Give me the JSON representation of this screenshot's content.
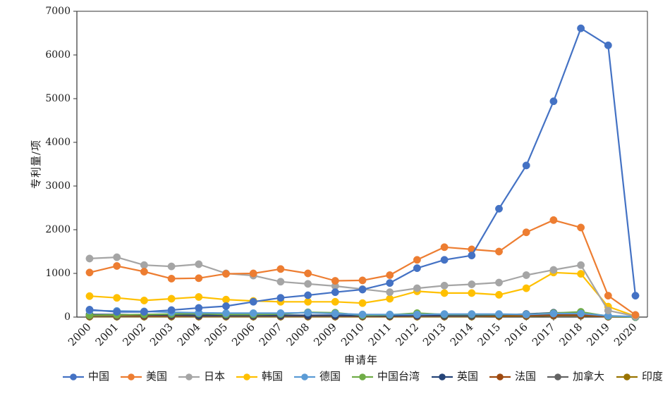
{
  "chart_data": {
    "type": "line",
    "title": "",
    "xlabel": "申请年",
    "ylabel": "专利量/项",
    "ylim": [
      0,
      7000
    ],
    "yticks": [
      0,
      1000,
      2000,
      3000,
      4000,
      5000,
      6000,
      7000
    ],
    "x": [
      "2000",
      "2001",
      "2002",
      "2003",
      "2004",
      "2005",
      "2006",
      "2007",
      "2008",
      "2009",
      "2010",
      "2011",
      "2012",
      "2013",
      "2014",
      "2015",
      "2016",
      "2017",
      "2018",
      "2019",
      "2020"
    ],
    "grid": false,
    "legend_position": "bottom",
    "series": [
      {
        "name": "中国",
        "color": "#4472c4",
        "values": [
          170,
          120,
          120,
          160,
          210,
          250,
          350,
          440,
          500,
          570,
          630,
          780,
          1120,
          1310,
          1410,
          2480,
          3470,
          4940,
          6610,
          6220,
          490
        ]
      },
      {
        "name": "美国",
        "color": "#ed7d31",
        "values": [
          1020,
          1170,
          1040,
          880,
          890,
          990,
          1000,
          1100,
          1000,
          830,
          840,
          960,
          1310,
          1600,
          1550,
          1500,
          1940,
          2220,
          2050,
          490,
          50
        ]
      },
      {
        "name": "日本",
        "color": "#a5a5a5",
        "values": [
          1340,
          1370,
          1190,
          1160,
          1210,
          1000,
          950,
          810,
          760,
          710,
          640,
          570,
          660,
          720,
          750,
          790,
          960,
          1080,
          1190,
          150,
          20
        ]
      },
      {
        "name": "韩国",
        "color": "#ffc000",
        "values": [
          480,
          440,
          380,
          420,
          460,
          400,
          370,
          350,
          350,
          350,
          320,
          420,
          590,
          550,
          550,
          510,
          660,
          1020,
          990,
          240,
          20
        ]
      },
      {
        "name": "德国",
        "color": "#5b9bd5",
        "values": [
          150,
          140,
          130,
          110,
          100,
          90,
          90,
          90,
          100,
          80,
          60,
          60,
          60,
          70,
          70,
          70,
          60,
          80,
          80,
          30,
          10
        ]
      },
      {
        "name": "中国台湾",
        "color": "#70ad47",
        "values": [
          40,
          50,
          60,
          70,
          80,
          60,
          60,
          70,
          110,
          100,
          40,
          50,
          90,
          60,
          60,
          60,
          60,
          90,
          120,
          20,
          0
        ]
      },
      {
        "name": "英国",
        "color": "#264478",
        "values": [
          60,
          60,
          50,
          50,
          40,
          40,
          40,
          40,
          40,
          40,
          30,
          30,
          40,
          40,
          40,
          50,
          70,
          100,
          90,
          20,
          0
        ]
      },
      {
        "name": "法国",
        "color": "#9e480e",
        "values": [
          30,
          40,
          30,
          30,
          30,
          30,
          30,
          30,
          30,
          30,
          20,
          20,
          30,
          30,
          30,
          30,
          40,
          50,
          50,
          10,
          0
        ]
      },
      {
        "name": "加拿大",
        "color": "#636363",
        "values": [
          20,
          20,
          20,
          20,
          20,
          20,
          20,
          20,
          20,
          20,
          20,
          20,
          20,
          20,
          20,
          30,
          30,
          40,
          40,
          10,
          0
        ]
      },
      {
        "name": "印度",
        "color": "#997300",
        "values": [
          10,
          10,
          10,
          10,
          10,
          10,
          10,
          10,
          10,
          10,
          10,
          10,
          10,
          10,
          10,
          20,
          20,
          30,
          30,
          10,
          0
        ]
      }
    ]
  }
}
